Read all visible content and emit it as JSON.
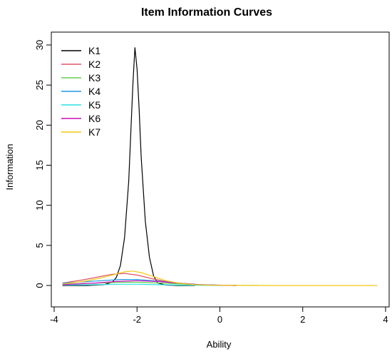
{
  "chart_data": {
    "type": "line",
    "title": "Item Information Curves",
    "xlabel": "Ability",
    "ylabel": "Information",
    "xlim": [
      -4,
      4
    ],
    "ylim": [
      0,
      30
    ],
    "x_ticks": [
      -4,
      -2,
      0,
      2,
      4
    ],
    "y_ticks": [
      0,
      5,
      10,
      15,
      20,
      25,
      30
    ],
    "legend_position": "top-left",
    "grid": false,
    "series": [
      {
        "name": "K1",
        "color": "#000000",
        "x": [
          -3.8,
          -3.2,
          -2.8,
          -2.6,
          -2.5,
          -2.4,
          -2.3,
          -2.2,
          -2.15,
          -2.1,
          -2.05,
          -2.0,
          -1.95,
          -1.9,
          -1.8,
          -1.7,
          -1.6,
          -1.5,
          -1.3,
          -1.0,
          -0.6
        ],
        "y": [
          0.0,
          0.0,
          0.1,
          0.4,
          1.0,
          2.5,
          6.0,
          13.0,
          19.0,
          25.0,
          29.7,
          27.0,
          22.0,
          16.0,
          8.0,
          3.5,
          1.2,
          0.3,
          0.05,
          0.0,
          0.0
        ]
      },
      {
        "name": "K2",
        "color": "#DF536B",
        "x": [
          -3.8,
          -3.3,
          -2.9,
          -2.6,
          -2.3,
          -2.0,
          -1.6,
          -1.2,
          -0.8,
          -0.4,
          0.0,
          0.4
        ],
        "y": [
          0.3,
          0.7,
          1.1,
          1.4,
          1.5,
          1.3,
          0.8,
          0.4,
          0.15,
          0.06,
          0.02,
          0.0
        ]
      },
      {
        "name": "K3",
        "color": "#61D04F",
        "x": [
          -3.8,
          -3.0,
          -2.4,
          -2.0,
          -1.4,
          -0.8,
          -0.2,
          0.4,
          0.9
        ],
        "y": [
          0.15,
          0.3,
          0.4,
          0.4,
          0.3,
          0.15,
          0.06,
          0.02,
          0.0
        ]
      },
      {
        "name": "K4",
        "color": "#2297E6",
        "x": [
          -3.8,
          -3.0,
          -2.4,
          -2.0,
          -1.5,
          -1.0,
          -0.5,
          0.0,
          0.4
        ],
        "y": [
          0.3,
          0.55,
          0.75,
          0.75,
          0.55,
          0.3,
          0.12,
          0.04,
          0.0
        ]
      },
      {
        "name": "K5",
        "color": "#28E2E5",
        "x": [
          -3.8,
          -3.0,
          -2.4,
          -2.0,
          -1.5,
          -1.0,
          -0.5,
          0.0
        ],
        "y": [
          0.05,
          0.1,
          0.15,
          0.15,
          0.1,
          0.05,
          0.02,
          0.0
        ]
      },
      {
        "name": "K6",
        "color": "#CD0BBC",
        "x": [
          -3.8,
          -3.0,
          -2.5,
          -2.0,
          -1.5,
          -1.0,
          -0.5,
          0.0,
          0.4
        ],
        "y": [
          0.1,
          0.3,
          0.5,
          0.6,
          0.5,
          0.3,
          0.1,
          0.03,
          0.0
        ]
      },
      {
        "name": "K7",
        "color": "#F5C710",
        "x": [
          -3.8,
          -3.3,
          -2.9,
          -2.6,
          -2.3,
          -2.1,
          -1.9,
          -1.6,
          -1.3,
          -1.0,
          -0.6,
          -0.2,
          0.5,
          1.5,
          2.5,
          3.8
        ],
        "y": [
          0.2,
          0.5,
          0.9,
          1.3,
          1.7,
          1.8,
          1.6,
          1.1,
          0.6,
          0.3,
          0.1,
          0.04,
          0.01,
          0.0,
          0.0,
          0.0
        ]
      }
    ]
  }
}
